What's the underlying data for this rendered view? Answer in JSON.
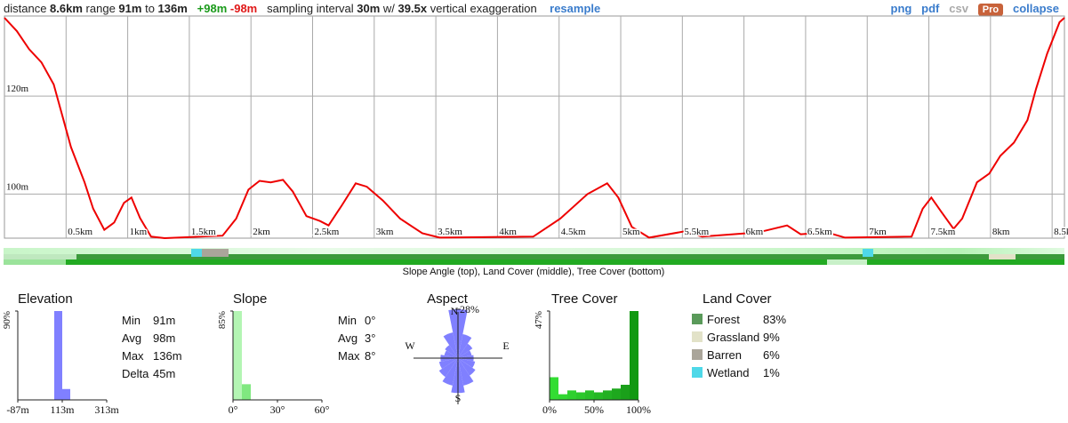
{
  "header": {
    "distance_label": "distance",
    "distance": "8.6km",
    "range_label": "range",
    "range_min": "91m",
    "to": "to",
    "range_max": "136m",
    "gain": "+98m",
    "loss": "-98m",
    "interval_label": "sampling interval",
    "interval": "30m",
    "with": "w/",
    "exaggeration": "39.5x",
    "exaggeration_label": "vertical exaggeration",
    "resample": "resample",
    "links": [
      "png",
      "pdf",
      "csv"
    ],
    "pro": "Pro",
    "collapse": "collapse"
  },
  "strip_caption": "Slope Angle (top), Land Cover (middle), Tree Cover (bottom)",
  "chart_data": [
    {
      "type": "line",
      "color": "#ee0000",
      "grid": true,
      "x": [
        0,
        0.1,
        0.2,
        0.3,
        0.4,
        0.47,
        0.54,
        0.65,
        0.72,
        0.81,
        0.89,
        0.97,
        1.03,
        1.1,
        1.19,
        1.3,
        1.77,
        1.88,
        1.98,
        2.07,
        2.16,
        2.26,
        2.34,
        2.45,
        2.56,
        2.63,
        2.74,
        2.85,
        2.94,
        3.07,
        3.21,
        3.39,
        3.53,
        4.29,
        4.51,
        4.73,
        4.89,
        4.98,
        5.09,
        5.23,
        5.52,
        5.66,
        6.02,
        6.17,
        6.35,
        6.46,
        6.67,
        6.82,
        7.36,
        7.45,
        7.52,
        7.6,
        7.7,
        7.77,
        7.89,
        7.99,
        8.08,
        8.19,
        8.3,
        8.37,
        8.46,
        8.56,
        8.6
      ],
      "values": [
        136,
        133.3,
        129.6,
        126.9,
        122.4,
        116,
        109.6,
        102.4,
        97,
        92.7,
        94.2,
        98.2,
        99.3,
        95.1,
        91.3,
        91,
        91.5,
        95,
        100.9,
        102.7,
        102.4,
        102.9,
        100.5,
        95.5,
        94.5,
        93.6,
        97.8,
        102.2,
        101.5,
        98.7,
        95,
        92,
        91.1,
        91.3,
        95,
        100,
        102.2,
        99.3,
        93.3,
        91.1,
        92.4,
        91.3,
        92,
        92.5,
        93.6,
        91.8,
        92.2,
        91.1,
        91.3,
        97,
        99.3,
        96.4,
        92.9,
        95,
        102.4,
        104.2,
        107.8,
        110.5,
        115.1,
        121.5,
        128.7,
        135.1,
        136
      ],
      "xlim": [
        0,
        8.6
      ],
      "xticks": [
        {
          "value": 0.5,
          "label": "0.5km"
        },
        {
          "value": 1,
          "label": "1km"
        },
        {
          "value": 1.5,
          "label": "1.5km"
        },
        {
          "value": 2,
          "label": "2km"
        },
        {
          "value": 2.5,
          "label": "2.5km"
        },
        {
          "value": 3,
          "label": "3km"
        },
        {
          "value": 3.5,
          "label": "3.5km"
        },
        {
          "value": 4,
          "label": "4km"
        },
        {
          "value": 4.5,
          "label": "4.5km"
        },
        {
          "value": 5,
          "label": "5km"
        },
        {
          "value": 5.5,
          "label": "5.5km"
        },
        {
          "value": 6,
          "label": "6km"
        },
        {
          "value": 6.5,
          "label": "6.5km"
        },
        {
          "value": 7,
          "label": "7km"
        },
        {
          "value": 7.5,
          "label": "7.5km"
        },
        {
          "value": 8,
          "label": "8km"
        },
        {
          "value": 8.5,
          "label": "8.5km"
        }
      ],
      "ylim": [
        91,
        136
      ],
      "yticks": [
        {
          "value": 100,
          "label": "100m"
        },
        {
          "value": 120,
          "label": "120m"
        }
      ]
    },
    {
      "type": "histogram",
      "title": "Elevation",
      "color": "#8080ff",
      "bins": [
        77,
        113,
        149
      ],
      "values": [
        90,
        11
      ],
      "xlim": [
        -87,
        313
      ],
      "xticks": [
        {
          "value": -87,
          "label": "-87m"
        },
        {
          "value": 113,
          "label": "113m"
        },
        {
          "value": 313,
          "label": "313m"
        }
      ],
      "ylim": [
        0,
        90
      ],
      "yticks": [
        {
          "value": 90,
          "label": "90%"
        }
      ],
      "stats": [
        {
          "label": "Min",
          "value": "91m"
        },
        {
          "label": "Avg",
          "value": "98m"
        },
        {
          "label": "Max",
          "value": "136m"
        },
        {
          "label": "Delta",
          "value": "45m"
        }
      ]
    },
    {
      "type": "histogram",
      "title": "Slope",
      "colors": [
        "#b3f5b3",
        "#80e880"
      ],
      "bins": [
        0,
        6,
        12
      ],
      "values": [
        85,
        15
      ],
      "xlim": [
        0,
        60
      ],
      "xticks": [
        {
          "value": 0,
          "label": "0°"
        },
        {
          "value": 30,
          "label": "30°"
        },
        {
          "value": 60,
          "label": "60°"
        }
      ],
      "ylim": [
        0,
        85
      ],
      "yticks": [
        {
          "value": 85,
          "label": "85%"
        }
      ],
      "stats": [
        {
          "label": "Min",
          "value": "0°"
        },
        {
          "label": "Avg",
          "value": "3°"
        },
        {
          "label": "Max",
          "value": "8°"
        }
      ]
    },
    {
      "type": "rose",
      "title": "Aspect",
      "color": "#8080ff",
      "categories": [
        "N",
        null,
        null,
        null,
        "E",
        null,
        null,
        null,
        "S",
        null,
        null,
        null,
        "W",
        null,
        null,
        null
      ],
      "values": [
        28,
        14,
        10,
        8,
        9,
        10,
        12,
        16,
        20,
        16,
        13,
        11,
        10,
        8,
        9,
        15
      ],
      "rlim": [
        0,
        28
      ],
      "rticks": [
        {
          "value": 28,
          "label": "28%"
        }
      ]
    },
    {
      "type": "histogram",
      "title": "Tree Cover",
      "colors": [
        "#33dd33",
        "#30d830",
        "#2ed02e",
        "#2bc82b",
        "#28c028",
        "#25b825",
        "#22b022",
        "#1ea81e",
        "#1aa01a",
        "#119911"
      ],
      "bins": [
        0,
        10,
        20,
        30,
        40,
        50,
        60,
        70,
        80,
        90,
        100
      ],
      "values": [
        12,
        3,
        5,
        4,
        5,
        4,
        5,
        6,
        8,
        47
      ],
      "xlim": [
        0,
        100
      ],
      "xticks": [
        {
          "value": 0,
          "label": "0%"
        },
        {
          "value": 50,
          "label": "50%"
        },
        {
          "value": 100,
          "label": "100%"
        }
      ],
      "ylim": [
        0,
        47
      ],
      "yticks": [
        {
          "value": 47,
          "label": "47%"
        }
      ]
    },
    {
      "type": "legend",
      "title": "Land Cover",
      "categories": [
        "Forest",
        "Grassland",
        "Barren",
        "Wetland"
      ],
      "colors": [
        "#5a9a5a",
        "#e2e2c8",
        "#aaa59a",
        "#4ed8e8"
      ],
      "values": [
        83,
        9,
        6,
        1
      ],
      "value_labels": [
        "83%",
        "9%",
        "6%",
        "1%"
      ]
    }
  ]
}
